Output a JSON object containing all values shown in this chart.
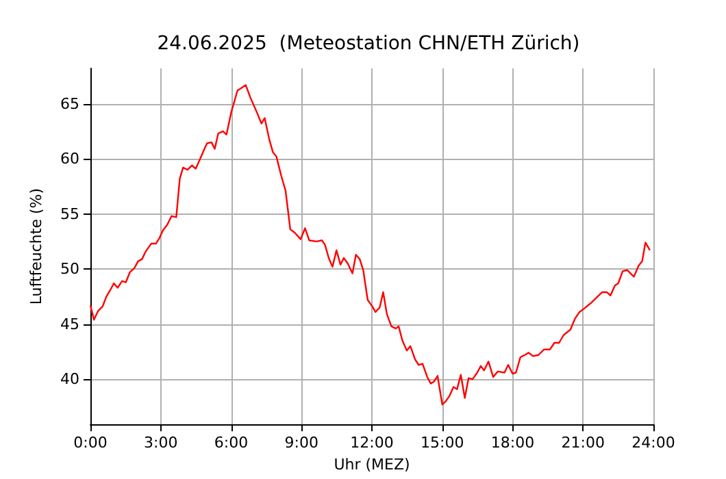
{
  "chart_data": {
    "type": "line",
    "title": "24.06.2025  (Meteostation CHN/ETH Zürich)",
    "xlabel": "Uhr (MEZ)",
    "ylabel": "Luftfeuchte (%)",
    "x": [
      0,
      0.15,
      0.33,
      0.52,
      0.68,
      0.85,
      1.0,
      1.16,
      1.35,
      1.51,
      1.68,
      1.88,
      2.03,
      2.2,
      2.36,
      2.59,
      2.79,
      2.94,
      3.09,
      3.27,
      3.46,
      3.66,
      3.81,
      3.95,
      4.14,
      4.33,
      4.49,
      4.68,
      4.84,
      4.97,
      5.16,
      5.3,
      5.45,
      5.65,
      5.8,
      6.0,
      6.27,
      6.42,
      6.62,
      6.81,
      7.1,
      7.29,
      7.43,
      7.62,
      7.78,
      7.93,
      8.13,
      8.32,
      8.52,
      8.71,
      8.96,
      9.15,
      9.33,
      9.64,
      9.87,
      10.0,
      10.16,
      10.32,
      10.49,
      10.66,
      10.8,
      10.97,
      11.17,
      11.32,
      11.48,
      11.63,
      11.82,
      12.02,
      12.15,
      12.33,
      12.48,
      12.64,
      12.83,
      13.02,
      13.14,
      13.3,
      13.49,
      13.64,
      13.84,
      13.99,
      14.16,
      14.36,
      14.51,
      14.65,
      14.8,
      15.0,
      15.15,
      15.31,
      15.48,
      15.63,
      15.79,
      15.96,
      16.12,
      16.29,
      16.49,
      16.64,
      16.78,
      16.97,
      17.17,
      17.36,
      17.65,
      17.81,
      18.0,
      18.14,
      18.33,
      18.52,
      18.68,
      18.87,
      19.1,
      19.34,
      19.59,
      19.78,
      19.98,
      20.17,
      20.46,
      20.66,
      20.85,
      21.04,
      21.33,
      21.62,
      21.82,
      22.01,
      22.17,
      22.36,
      22.5,
      22.69,
      22.88,
      23.17,
      23.37,
      23.52,
      23.66,
      23.85
    ],
    "series": [
      {
        "color": "#ff0000",
        "values": [
          46.7,
          45.4,
          46.2,
          46.6,
          47.5,
          48.1,
          48.7,
          48.3,
          48.9,
          48.8,
          49.7,
          50.1,
          50.7,
          50.9,
          51.6,
          52.3,
          52.3,
          52.8,
          53.5,
          54.0,
          54.8,
          54.7,
          58.2,
          59.2,
          59.0,
          59.4,
          59.1,
          60.0,
          60.8,
          61.4,
          61.5,
          60.9,
          62.3,
          62.5,
          62.2,
          64.2,
          66.2,
          66.4,
          66.7,
          65.6,
          64.2,
          63.2,
          63.7,
          61.8,
          60.6,
          60.2,
          58.5,
          57.1,
          53.6,
          53.3,
          52.7,
          53.7,
          52.6,
          52.5,
          52.6,
          52.2,
          51.0,
          50.2,
          51.7,
          50.4,
          51.0,
          50.5,
          49.6,
          51.3,
          50.9,
          49.9,
          47.2,
          46.6,
          46.1,
          46.5,
          47.9,
          45.9,
          44.8,
          44.6,
          44.8,
          43.5,
          42.6,
          43.0,
          41.8,
          41.3,
          41.4,
          40.2,
          39.6,
          39.8,
          40.3,
          37.7,
          38.0,
          38.5,
          39.3,
          39.1,
          40.4,
          38.3,
          40.1,
          40.0,
          40.6,
          41.2,
          40.8,
          41.6,
          40.2,
          40.7,
          40.6,
          41.3,
          40.5,
          40.6,
          42.0,
          42.2,
          42.4,
          42.1,
          42.2,
          42.7,
          42.7,
          43.3,
          43.3,
          44.0,
          44.5,
          45.5,
          46.1,
          46.4,
          46.9,
          47.5,
          47.9,
          47.9,
          47.6,
          48.5,
          48.7,
          49.8,
          49.9,
          49.3,
          50.3,
          50.7,
          52.4,
          51.7
        ]
      }
    ],
    "xlim": [
      0,
      24
    ],
    "xticks": [
      {
        "value": 0,
        "label": "0:00"
      },
      {
        "value": 3,
        "label": "3:00"
      },
      {
        "value": 6,
        "label": "6:00"
      },
      {
        "value": 9,
        "label": "9:00"
      },
      {
        "value": 12,
        "label": "12:00"
      },
      {
        "value": 15,
        "label": "15:00"
      },
      {
        "value": 18,
        "label": "18:00"
      },
      {
        "value": 21,
        "label": "21:00"
      },
      {
        "value": 24,
        "label": "24:00"
      }
    ],
    "ylim": [
      35.9,
      68.2
    ],
    "yticks": [
      40,
      45,
      50,
      55,
      60,
      65
    ],
    "grid": true,
    "marker": "none",
    "line_style": "solid"
  }
}
